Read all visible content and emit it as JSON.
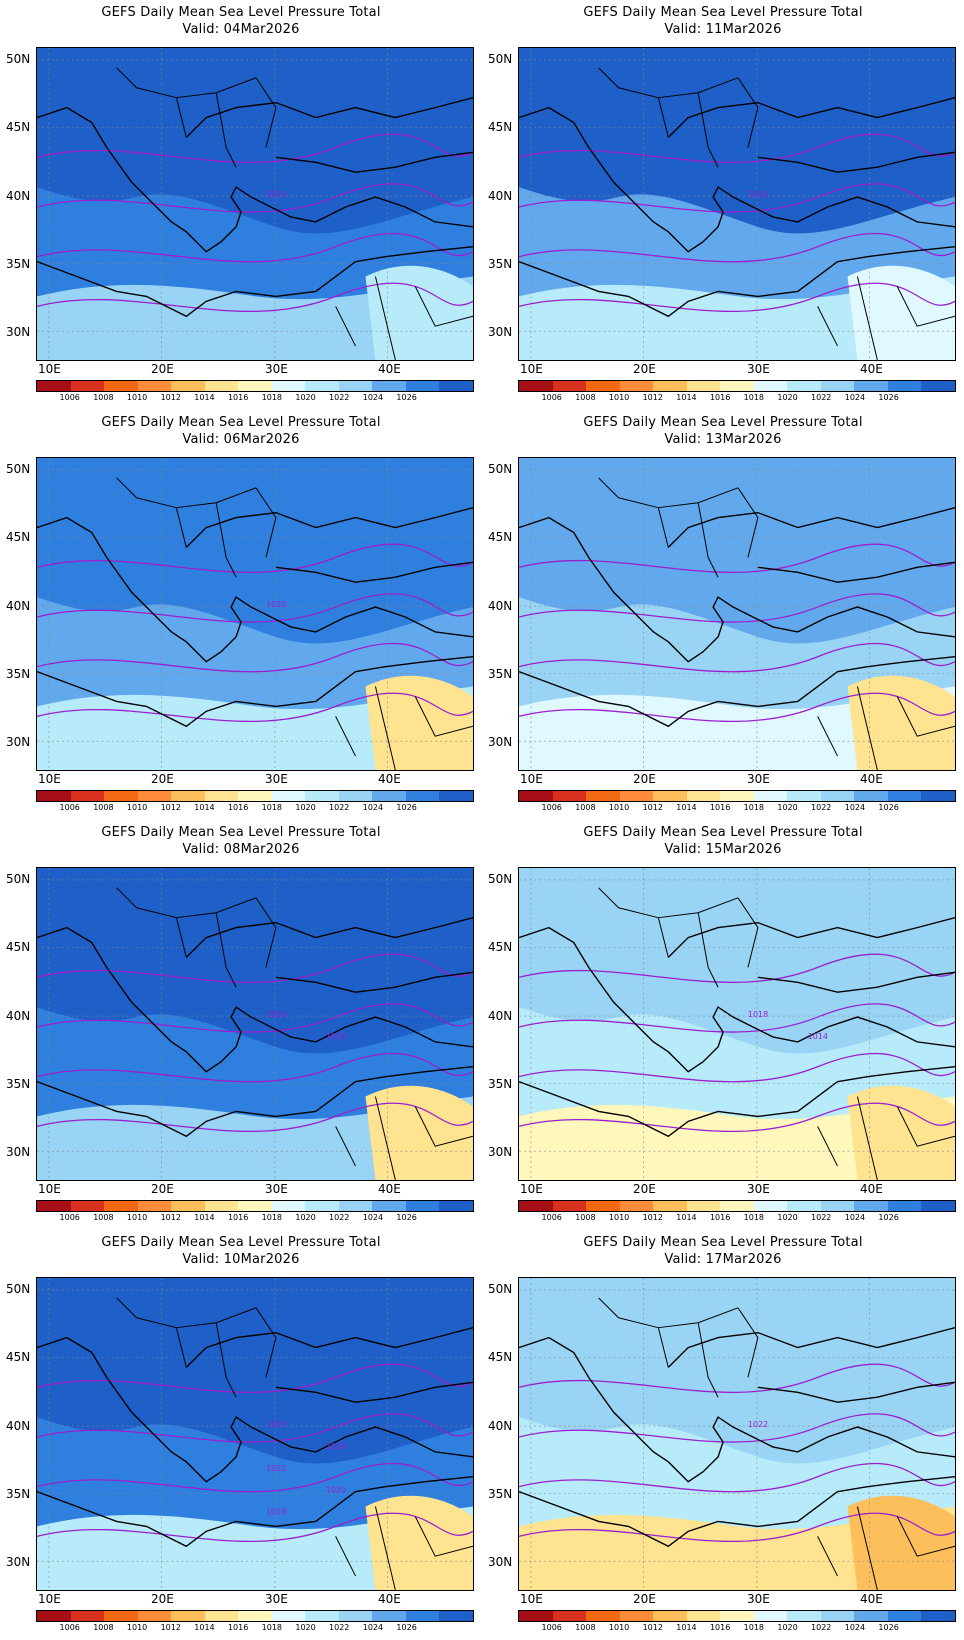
{
  "colorbar": {
    "levels": [
      "1006",
      "1008",
      "1010",
      "1012",
      "1014",
      "1016",
      "1018",
      "1020",
      "1022",
      "1024",
      "1026"
    ],
    "colors": [
      "#a50f15",
      "#d7301f",
      "#f16913",
      "#fd8d3c",
      "#fdbf5c",
      "#fee391",
      "#fff7bc",
      "#e0f8ff",
      "#b7ebfa",
      "#99d4f5",
      "#62a8ec",
      "#2f7fdf",
      "#1e5fc8"
    ]
  },
  "axes": {
    "lat_labels": [
      "50N",
      "45N",
      "40N",
      "35N",
      "30N"
    ],
    "lon_labels": [
      "10E",
      "20E",
      "30E",
      "40E"
    ]
  },
  "panels": [
    {
      "title": "GEFS Daily Mean Sea Level Pressure Total",
      "valid": "Valid: 04Mar2026",
      "contour_labels": [
        "1024"
      ],
      "bg": "#2f7fdf",
      "band": "#1e5fc8",
      "south": "#99d4f5",
      "se": "#b7ebfa"
    },
    {
      "title": "GEFS Daily Mean Sea Level Pressure Total",
      "valid": "Valid: 11Mar2026",
      "contour_labels": [
        "1020"
      ],
      "bg": "#62a8ec",
      "band": "#1e5fc8",
      "south": "#b7ebfa",
      "se": "#e0f8ff"
    },
    {
      "title": "GEFS Daily Mean Sea Level Pressure Total",
      "valid": "Valid: 06Mar2026",
      "contour_labels": [
        "1020"
      ],
      "bg": "#62a8ec",
      "band": "#2f7fdf",
      "south": "#b7ebfa",
      "se": "#fee391"
    },
    {
      "title": "GEFS Daily Mean Sea Level Pressure Total",
      "valid": "Valid: 13Mar2026",
      "contour_labels": [],
      "bg": "#99d4f5",
      "band": "#62a8ec",
      "south": "#e0f8ff",
      "se": "#fee391"
    },
    {
      "title": "GEFS Daily Mean Sea Level Pressure Total",
      "valid": "Valid: 08Mar2026",
      "contour_labels": [
        "1026",
        "1024"
      ],
      "bg": "#2f7fdf",
      "band": "#1e5fc8",
      "south": "#99d4f5",
      "se": "#fee391"
    },
    {
      "title": "GEFS Daily Mean Sea Level Pressure Total",
      "valid": "Valid: 15Mar2026",
      "contour_labels": [
        "1018",
        "1014"
      ],
      "bg": "#b7ebfa",
      "band": "#99d4f5",
      "south": "#fff7bc",
      "se": "#fee391"
    },
    {
      "title": "GEFS Daily Mean Sea Level Pressure Total",
      "valid": "Valid: 10Mar2026",
      "contour_labels": [
        "1026",
        "1024",
        "1022",
        "1020",
        "1018"
      ],
      "bg": "#2f7fdf",
      "band": "#1e5fc8",
      "south": "#b7ebfa",
      "se": "#fee391"
    },
    {
      "title": "GEFS Daily Mean Sea Level Pressure Total",
      "valid": "Valid: 17Mar2026",
      "contour_labels": [
        "1022"
      ],
      "bg": "#b7ebfa",
      "band": "#99d4f5",
      "south": "#fee391",
      "se": "#fdbf5c"
    }
  ]
}
